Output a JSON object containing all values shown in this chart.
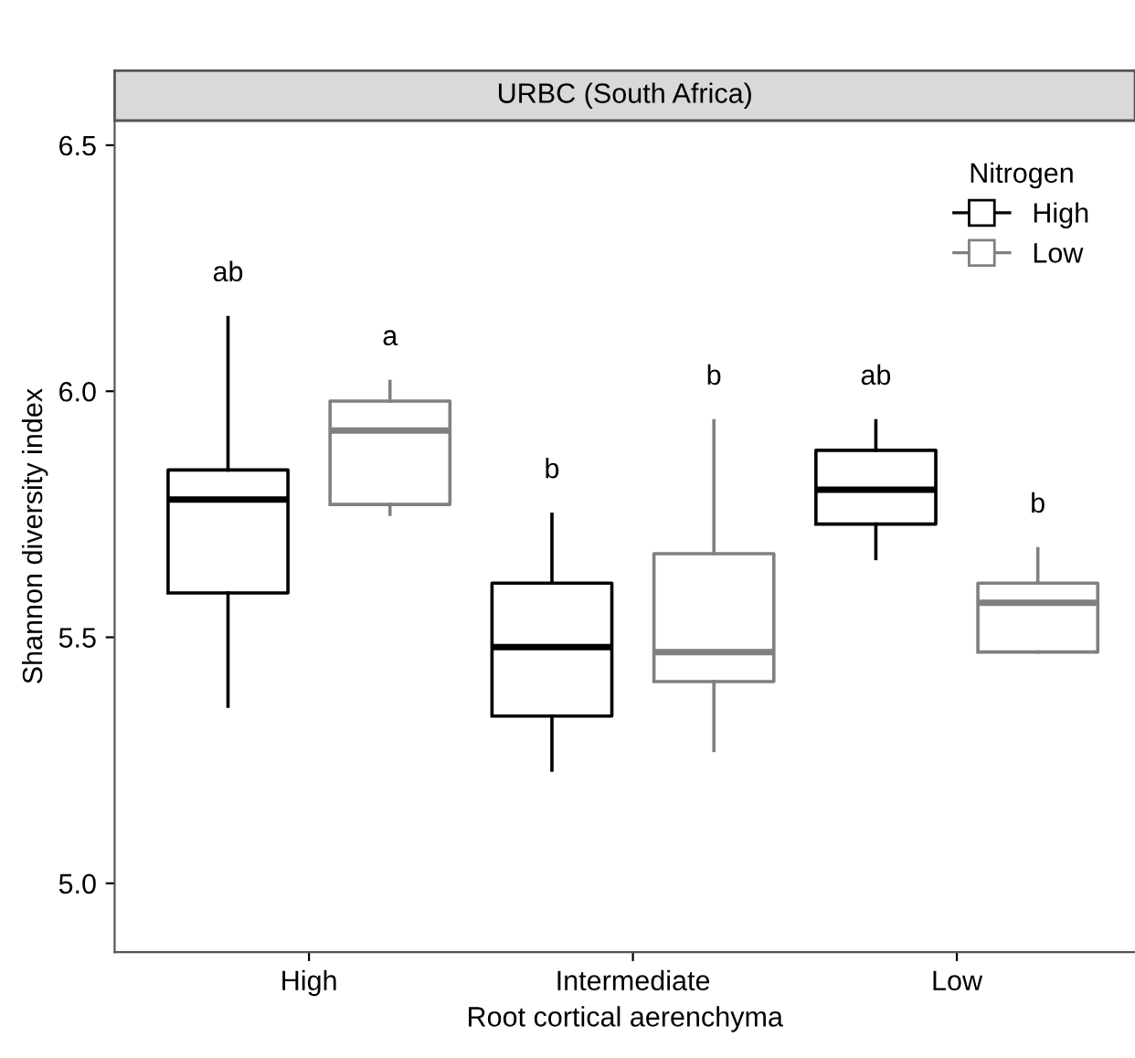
{
  "chart_data": {
    "type": "box",
    "title": "URBC (South Africa)",
    "xlabel": "Root cortical aerenchyma",
    "ylabel": "Shannon diversity index",
    "legend_title": "Nitrogen",
    "legend": "top right",
    "grid": false,
    "categories": [
      "High",
      "Intermediate",
      "Low"
    ],
    "ylim": [
      4.86,
      6.55
    ],
    "yticks": [
      {
        "value": 5.0,
        "label": "5.0"
      },
      {
        "value": 5.5,
        "label": "5.5"
      },
      {
        "value": 6.0,
        "label": "6.0"
      },
      {
        "value": 6.5,
        "label": "6.5"
      }
    ],
    "series": [
      {
        "name": "High",
        "color": "#000000",
        "boxes": [
          {
            "low": 5.36,
            "q1": 5.59,
            "median": 5.78,
            "q3": 5.84,
            "high": 6.15
          },
          {
            "low": 5.23,
            "q1": 5.34,
            "median": 5.48,
            "q3": 5.61,
            "high": 5.75
          },
          {
            "low": 5.66,
            "q1": 5.73,
            "median": 5.8,
            "q3": 5.88,
            "high": 5.94
          }
        ]
      },
      {
        "name": "Low",
        "color": "#808080",
        "boxes": [
          {
            "low": 5.75,
            "q1": 5.77,
            "median": 5.92,
            "q3": 5.98,
            "high": 6.02
          },
          {
            "low": 5.27,
            "q1": 5.41,
            "median": 5.47,
            "q3": 5.67,
            "high": 5.94
          },
          {
            "low": 5.47,
            "q1": 5.47,
            "median": 5.57,
            "q3": 5.61,
            "high": 5.68
          }
        ]
      }
    ],
    "annotations": [
      "ab",
      "a",
      "b",
      "b",
      "ab",
      "b"
    ]
  }
}
